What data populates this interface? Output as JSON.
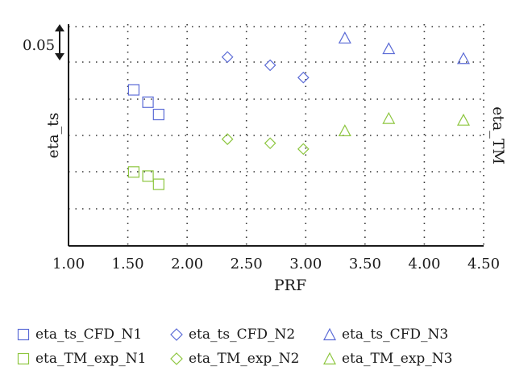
{
  "chart_data": {
    "type": "scatter",
    "title": "",
    "xlabel": "PRF",
    "ylabel_left": "eta_ts",
    "ylabel_right": "eta_TM",
    "xlim": [
      1.0,
      4.5
    ],
    "x_ticks": [
      "1.00",
      "1.50",
      "2.00",
      "2.50",
      "3.00",
      "3.50",
      "4.00",
      "4.50"
    ],
    "y_tick_label": "0.05",
    "grid": "dotted",
    "legend_position": "bottom",
    "series": [
      {
        "name": "eta_ts_CFD_N1",
        "marker": "square",
        "color": "#5b6bd6",
        "points": [
          {
            "x": 1.55,
            "y": 0.044
          },
          {
            "x": 1.67,
            "y": 0.0425
          },
          {
            "x": 1.76,
            "y": 0.041
          }
        ]
      },
      {
        "name": "eta_ts_CFD_N2",
        "marker": "diamond",
        "color": "#5b6bd6",
        "points": [
          {
            "x": 2.34,
            "y": 0.048
          },
          {
            "x": 2.7,
            "y": 0.047
          },
          {
            "x": 2.98,
            "y": 0.0455
          }
        ]
      },
      {
        "name": "eta_ts_CFD_N3",
        "marker": "triangle",
        "color": "#5b6bd6",
        "points": [
          {
            "x": 3.33,
            "y": 0.0503
          },
          {
            "x": 3.7,
            "y": 0.049
          },
          {
            "x": 4.33,
            "y": 0.0478
          }
        ]
      },
      {
        "name": "eta_TM_exp_N1",
        "marker": "square",
        "color": "#8dc63f",
        "points": [
          {
            "x": 1.55,
            "y": 0.034
          },
          {
            "x": 1.67,
            "y": 0.0335
          },
          {
            "x": 1.76,
            "y": 0.0325
          }
        ]
      },
      {
        "name": "eta_TM_exp_N2",
        "marker": "diamond",
        "color": "#8dc63f",
        "points": [
          {
            "x": 2.34,
            "y": 0.038
          },
          {
            "x": 2.7,
            "y": 0.0375
          },
          {
            "x": 2.98,
            "y": 0.0368
          }
        ]
      },
      {
        "name": "eta_TM_exp_N3",
        "marker": "triangle",
        "color": "#8dc63f",
        "points": [
          {
            "x": 3.33,
            "y": 0.039
          },
          {
            "x": 3.7,
            "y": 0.0405
          },
          {
            "x": 4.33,
            "y": 0.0403
          }
        ]
      }
    ]
  }
}
